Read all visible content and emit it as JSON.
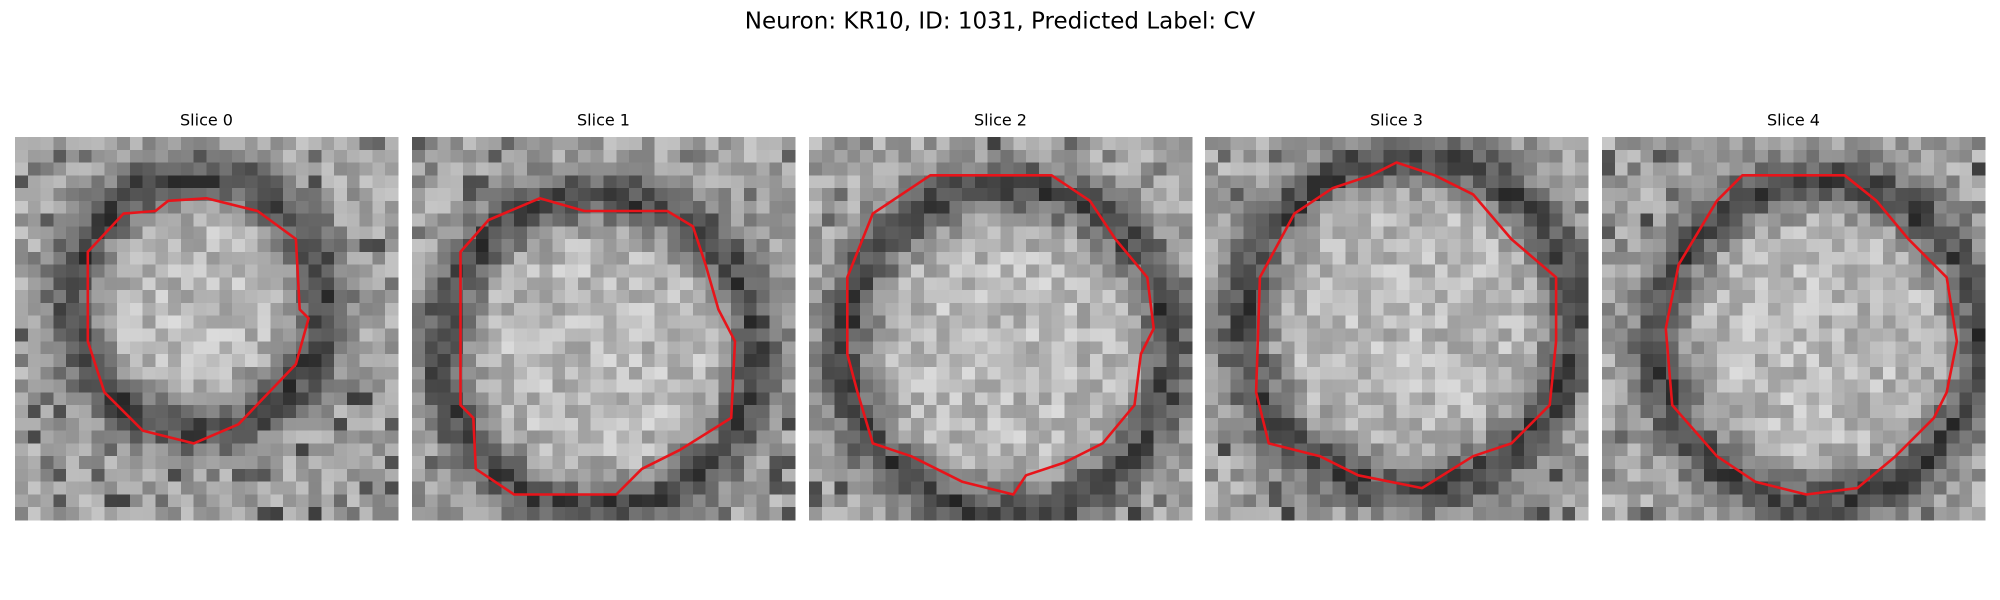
{
  "title": "Neuron: KR10, ID: 1031, Predicted Label: CV",
  "panels": [
    {
      "title": "Slice 0"
    },
    {
      "title": "Slice 1"
    },
    {
      "title": "Slice 2"
    },
    {
      "title": "Slice 3"
    },
    {
      "title": "Slice 4"
    }
  ]
}
